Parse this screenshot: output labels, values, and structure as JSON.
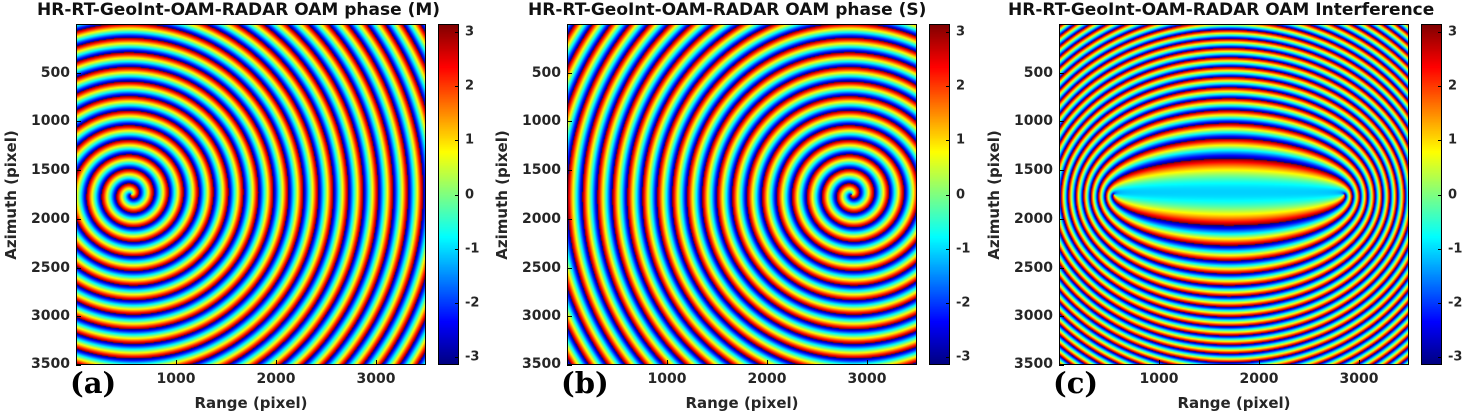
{
  "chart_data": [
    {
      "type": "heatmap",
      "panel_label": "(a)",
      "title": "HR-RT-GeoInt-OAM-RADAR OAM phase (M)",
      "xlabel": "Range (pixel)",
      "ylabel": "Azimuth (pixel)",
      "xlim": [
        0,
        3500
      ],
      "ylim": [
        3500,
        0
      ],
      "xticks": [
        1000,
        2000,
        3000
      ],
      "yticks": [
        500,
        1000,
        1500,
        2000,
        2500,
        3000,
        3500
      ],
      "colorbar": {
        "colormap": "jet",
        "range": [
          -3.14,
          3.14
        ],
        "ticks": [
          3,
          2,
          1,
          0,
          -1,
          -2,
          -3
        ]
      },
      "field": "spiral phase (wrapped, -pi to pi)",
      "center": [
        550,
        1750
      ],
      "ring_spacing_px": 150
    },
    {
      "type": "heatmap",
      "panel_label": "(b)",
      "title": "HR-RT-GeoInt-OAM-RADAR OAM phase (S)",
      "xlabel": "Range (pixel)",
      "ylabel": "Azimuth (pixel)",
      "xlim": [
        0,
        3500
      ],
      "ylim": [
        3500,
        0
      ],
      "xticks": [
        1000,
        2000,
        3000
      ],
      "yticks": [
        500,
        1000,
        1500,
        2000,
        2500,
        3000,
        3500
      ],
      "colorbar": {
        "colormap": "jet",
        "range": [
          -3.14,
          3.14
        ],
        "ticks": [
          3,
          2,
          1,
          0,
          -1,
          -2,
          -3
        ]
      },
      "field": "spiral phase (wrapped, -pi to pi)",
      "center": [
        2850,
        1750
      ],
      "ring_spacing_px": 150
    },
    {
      "type": "heatmap",
      "panel_label": "(c)",
      "title": "HR-RT-GeoInt-OAM-RADAR OAM Interference",
      "xlabel": "Range (pixel)",
      "ylabel": "Azimuth (pixel)",
      "xlim": [
        0,
        3500
      ],
      "ylim": [
        3500,
        0
      ],
      "xticks": [
        1000,
        2000,
        3000
      ],
      "yticks": [
        500,
        1000,
        1500,
        2000,
        2500,
        3000,
        3500
      ],
      "colorbar": {
        "colormap": "jet",
        "range": [
          -3.14,
          3.14
        ],
        "ticks": [
          3,
          2,
          1,
          0,
          -1,
          -2,
          -3
        ]
      },
      "field": "interference phase of spirals (M) and (S)",
      "foci": [
        [
          550,
          1750
        ],
        [
          2850,
          1750
        ]
      ]
    }
  ]
}
